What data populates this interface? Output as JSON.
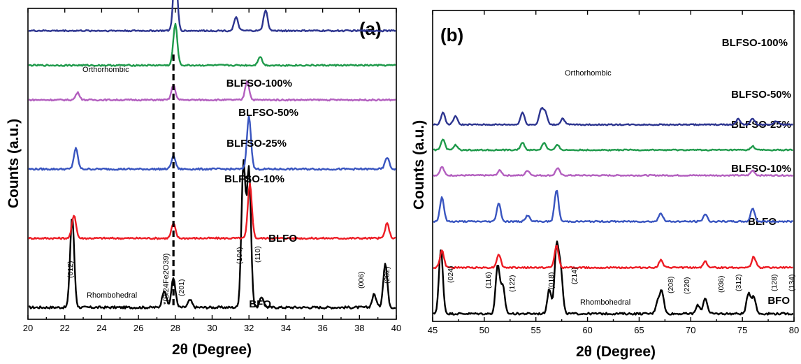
{
  "chart_data": [
    {
      "type": "line",
      "panel_label": "(a)",
      "xlabel": "2θ (Degree)",
      "ylabel": "Counts (a.u.)",
      "xlim": [
        20,
        40
      ],
      "x_ticks": [
        "20",
        "22",
        "24",
        "26",
        "28",
        "30",
        "32",
        "34",
        "36",
        "38",
        "40"
      ],
      "legend": "none (series labelled inline)",
      "grid": false,
      "reference_line": {
        "x": 27.9,
        "style": "dashed"
      },
      "series": [
        {
          "name": "BFO",
          "color": "#000000",
          "offset": 0,
          "noise": 0.008,
          "peaks": [
            [
              22.4,
              0.62
            ],
            [
              27.4,
              0.12
            ],
            [
              27.9,
              0.2
            ],
            [
              28.8,
              0.05
            ],
            [
              31.7,
              0.98
            ],
            [
              32.0,
              0.94
            ],
            [
              32.7,
              0.07
            ],
            [
              38.8,
              0.09
            ],
            [
              39.4,
              0.3
            ]
          ]
        },
        {
          "name": "BLFO",
          "color": "#ed1c24",
          "offset": 1,
          "noise": 0.006,
          "peaks": [
            [
              22.5,
              0.16
            ],
            [
              27.9,
              0.1
            ],
            [
              32.05,
              0.37
            ],
            [
              39.5,
              0.1
            ]
          ]
        },
        {
          "name": "BLFSO-10%",
          "color": "#3955c0",
          "offset": 2,
          "noise": 0.006,
          "peaks": [
            [
              22.6,
              0.14
            ],
            [
              27.9,
              0.09
            ],
            [
              32.0,
              0.36
            ],
            [
              39.5,
              0.08
            ]
          ]
        },
        {
          "name": "BLFSO-25%",
          "color": "#b35fbf",
          "offset": 3,
          "noise": 0.005,
          "peaks": [
            [
              22.7,
              0.05
            ],
            [
              27.9,
              0.1
            ],
            [
              31.9,
              0.13
            ]
          ]
        },
        {
          "name": "BLFSO-50%",
          "color": "#1f9a4b",
          "offset": 3.5,
          "noise": 0.005,
          "peaks": [
            [
              28.0,
              0.28
            ],
            [
              32.6,
              0.06
            ]
          ]
        },
        {
          "name": "BLFSO-100%",
          "color": "#2d3590",
          "offset": 4.0,
          "noise": 0.005,
          "peaks": [
            [
              28.0,
              0.42
            ],
            [
              31.3,
              0.09
            ],
            [
              32.9,
              0.14
            ]
          ]
        }
      ],
      "annotations": {
        "phase_top": "Orthorhombic",
        "phase_bottom": "Rhombohedral",
        "impurity": "*(Bi24Fe2O39)",
        "peaks": [
          {
            "x": 22.4,
            "label": "(012)"
          },
          {
            "x": 28.2,
            "label": "(201)"
          },
          {
            "x": 31.7,
            "label": "(104)"
          },
          {
            "x": 32.2,
            "label": "(110)"
          },
          {
            "x": 38.8,
            "label": "(006)"
          },
          {
            "x": 39.4,
            "label": "(202)"
          }
        ]
      }
    },
    {
      "type": "line",
      "panel_label": "(b)",
      "xlabel": "2θ (Degree)",
      "ylabel": "Counts (a.u.)",
      "xlim": [
        45,
        80
      ],
      "x_ticks": [
        "45",
        "50",
        "55",
        "60",
        "65",
        "70",
        "75",
        "80"
      ],
      "legend": "none (series labelled inline)",
      "grid": false,
      "series": [
        {
          "name": "BFO",
          "color": "#000000",
          "offset": 0,
          "noise": 0.008,
          "peaks": [
            [
              45.8,
              0.52
            ],
            [
              51.3,
              0.4
            ],
            [
              51.8,
              0.22
            ],
            [
              56.3,
              0.2
            ],
            [
              57.0,
              0.55
            ],
            [
              57.4,
              0.35
            ],
            [
              66.8,
              0.1
            ],
            [
              67.2,
              0.18
            ],
            [
              70.7,
              0.07
            ],
            [
              71.4,
              0.13
            ],
            [
              75.6,
              0.17
            ],
            [
              76.1,
              0.14
            ]
          ]
        },
        {
          "name": "BLFO",
          "color": "#ed1c24",
          "offset": 1,
          "noise": 0.006,
          "peaks": [
            [
              45.9,
              0.14
            ],
            [
              51.4,
              0.11
            ],
            [
              57.0,
              0.18
            ],
            [
              67.1,
              0.06
            ],
            [
              71.4,
              0.05
            ],
            [
              76.1,
              0.09
            ]
          ]
        },
        {
          "name": "BLFSO-10%",
          "color": "#3955c0",
          "offset": 2,
          "noise": 0.006,
          "peaks": [
            [
              45.9,
              0.2
            ],
            [
              51.4,
              0.15
            ],
            [
              54.2,
              0.05
            ],
            [
              57.0,
              0.26
            ],
            [
              67.1,
              0.07
            ],
            [
              71.4,
              0.06
            ],
            [
              76.0,
              0.11
            ]
          ]
        },
        {
          "name": "BLFSO-25%",
          "color": "#b35fbf",
          "offset": 3,
          "noise": 0.005,
          "peaks": [
            [
              45.9,
              0.07
            ],
            [
              51.5,
              0.04
            ],
            [
              54.2,
              0.04
            ],
            [
              57.1,
              0.06
            ],
            [
              76.0,
              0.04
            ]
          ]
        },
        {
          "name": "BLFSO-50%",
          "color": "#1f9a4b",
          "offset": 3.55,
          "noise": 0.005,
          "peaks": [
            [
              46.0,
              0.09
            ],
            [
              47.2,
              0.04
            ],
            [
              53.7,
              0.06
            ],
            [
              55.8,
              0.06
            ],
            [
              57.1,
              0.04
            ],
            [
              76.0,
              0.03
            ]
          ]
        },
        {
          "name": "BLFSO-100%",
          "color": "#2d3590",
          "offset": 4.1,
          "noise": 0.005,
          "peaks": [
            [
              46.0,
              0.1
            ],
            [
              47.2,
              0.07
            ],
            [
              53.7,
              0.1
            ],
            [
              55.5,
              0.12
            ],
            [
              55.9,
              0.1
            ],
            [
              57.6,
              0.05
            ],
            [
              74.6,
              0.05
            ],
            [
              76.0,
              0.05
            ],
            [
              78.3,
              0.03
            ]
          ]
        }
      ],
      "annotations": {
        "phase_top": "Orthorhombic",
        "phase_bottom": "Rhombohedral",
        "peaks": [
          {
            "x": 45.8,
            "label": "(024)"
          },
          {
            "x": 51.3,
            "label": "(116)"
          },
          {
            "x": 52.0,
            "label": "(122)"
          },
          {
            "x": 56.3,
            "label": "(018)"
          },
          {
            "x": 57.4,
            "label": "(214)"
          },
          {
            "x": 66.6,
            "label": "(208)"
          },
          {
            "x": 67.4,
            "label": "(220)"
          },
          {
            "x": 70.6,
            "label": "(036)"
          },
          {
            "x": 71.6,
            "label": "(312)"
          },
          {
            "x": 75.6,
            "label": "(128)"
          },
          {
            "x": 76.2,
            "label": "(134)"
          }
        ]
      }
    }
  ]
}
